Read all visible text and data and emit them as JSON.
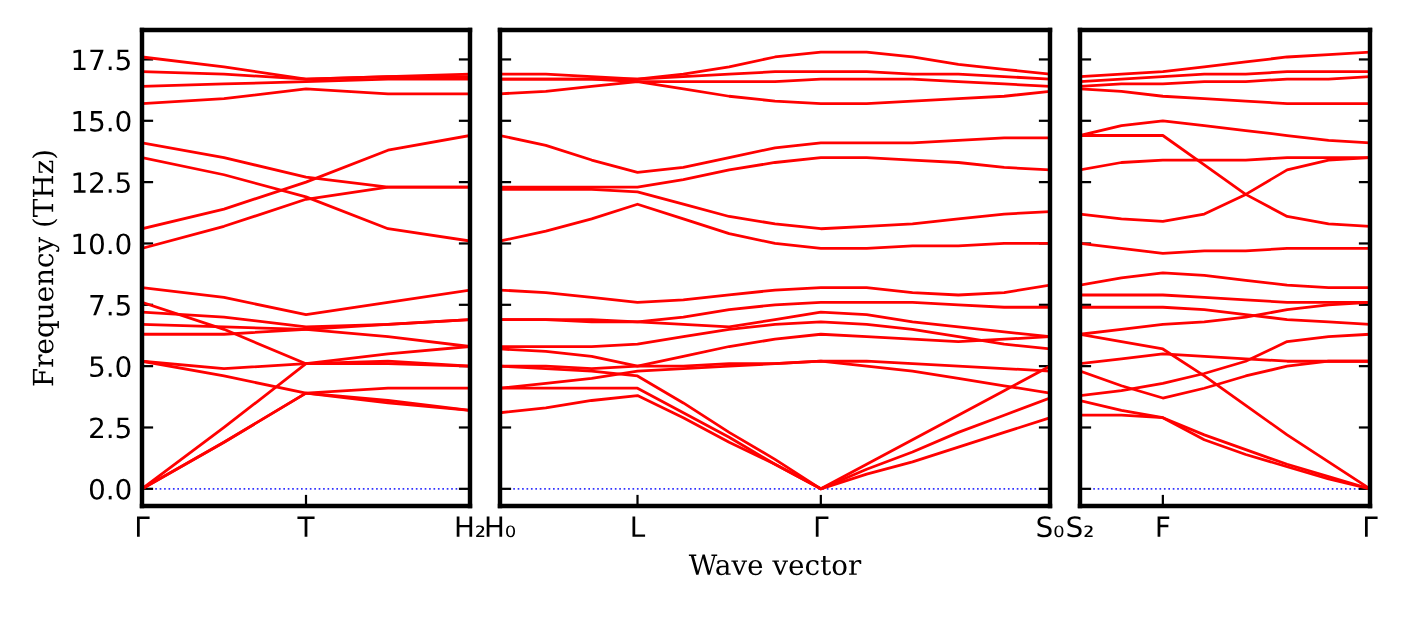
{
  "chart_data": [
    {
      "type": "line",
      "ylabel": "Frequency (THz)",
      "categories": [
        "Γ",
        null,
        "T",
        null,
        "H₂"
      ],
      "ylim": [
        -0.7,
        18.7
      ],
      "yticks": [
        {
          "value": 0,
          "label": "0.0"
        },
        2.5,
        {
          "value": 5,
          "label": "5.0"
        },
        7.5,
        {
          "value": 10,
          "label": "10.0"
        },
        12.5,
        {
          "value": 15,
          "label": "15.0"
        },
        17.5
      ],
      "line_style": "solid",
      "ref_lines": [
        {
          "axis": "y",
          "value": 0,
          "color": "#3333ff",
          "line_style": "dotted"
        }
      ],
      "series": [
        {
          "color": "#ff0000",
          "values": [
            17.6,
            17.2,
            16.7,
            16.8,
            16.8
          ]
        },
        {
          "color": "#ff0000",
          "values": [
            17.0,
            16.9,
            16.7,
            16.8,
            16.9
          ]
        },
        {
          "color": "#ff0000",
          "values": [
            16.4,
            16.5,
            16.6,
            16.7,
            16.7
          ]
        },
        {
          "color": "#ff0000",
          "values": [
            15.7,
            15.9,
            16.3,
            16.1,
            16.1
          ]
        },
        {
          "color": "#ff0000",
          "values": [
            14.1,
            13.5,
            12.7,
            12.3,
            12.3
          ]
        },
        {
          "color": "#ff0000",
          "values": [
            13.5,
            12.8,
            11.9,
            10.6,
            10.1
          ]
        },
        {
          "color": "#ff0000",
          "values": [
            10.6,
            11.4,
            12.5,
            13.8,
            14.4
          ]
        },
        {
          "color": "#ff0000",
          "values": [
            9.8,
            10.7,
            11.8,
            12.3,
            12.3
          ]
        },
        {
          "color": "#ff0000",
          "values": [
            8.2,
            7.8,
            7.1,
            7.6,
            8.1
          ]
        },
        {
          "color": "#ff0000",
          "values": [
            7.6,
            6.5,
            5.1,
            5.2,
            5.0
          ]
        },
        {
          "color": "#ff0000",
          "values": [
            7.2,
            7.0,
            6.6,
            6.7,
            6.9
          ]
        },
        {
          "color": "#ff0000",
          "values": [
            6.7,
            6.6,
            6.5,
            6.2,
            5.8
          ]
        },
        {
          "color": "#ff0000",
          "values": [
            6.3,
            6.3,
            6.5,
            6.7,
            6.9
          ]
        },
        {
          "color": "#ff0000",
          "values": [
            5.2,
            4.9,
            5.1,
            5.1,
            5.0
          ]
        },
        {
          "color": "#ff0000",
          "values": [
            5.2,
            4.6,
            3.9,
            3.6,
            3.2
          ]
        },
        {
          "color": "#ff0000",
          "values": [
            0,
            2.5,
            5.1,
            5.5,
            5.8
          ]
        },
        {
          "color": "#ff0000",
          "values": [
            0,
            1.9,
            3.9,
            4.1,
            4.1
          ]
        },
        {
          "color": "#ff0000",
          "values": [
            0,
            1.9,
            3.9,
            3.5,
            3.2
          ]
        }
      ]
    },
    {
      "type": "line",
      "xlabel": "Wave vector",
      "tick_labels": "x",
      "categories": [
        "H₀",
        null,
        null,
        "L",
        null,
        null,
        null,
        "Γ",
        null,
        null,
        null,
        null,
        "S₀"
      ],
      "ylim": [
        -0.7,
        18.7
      ],
      "line_style": "solid",
      "ref_lines": [
        {
          "axis": "y",
          "value": 0,
          "color": "#3333ff",
          "line_style": "dotted"
        }
      ],
      "series": [
        {
          "color": "#ff0000",
          "values": [
            16.9,
            16.9,
            16.8,
            16.7,
            16.9,
            17.2,
            17.6,
            17.8,
            17.8,
            17.6,
            17.3,
            17.1,
            16.9
          ]
        },
        {
          "color": "#ff0000",
          "values": [
            16.7,
            16.7,
            16.7,
            16.7,
            16.8,
            16.9,
            17.0,
            17.0,
            17.0,
            16.9,
            16.9,
            16.8,
            16.7
          ]
        },
        {
          "color": "#ff0000",
          "values": [
            16.7,
            16.7,
            16.7,
            16.6,
            16.6,
            16.6,
            16.6,
            16.7,
            16.7,
            16.7,
            16.6,
            16.5,
            16.4
          ]
        },
        {
          "color": "#ff0000",
          "values": [
            16.1,
            16.2,
            16.4,
            16.6,
            16.3,
            16.0,
            15.8,
            15.7,
            15.7,
            15.8,
            15.9,
            16.0,
            16.2
          ]
        },
        {
          "color": "#ff0000",
          "values": [
            14.4,
            14.0,
            13.4,
            12.9,
            13.1,
            13.5,
            13.9,
            14.1,
            14.1,
            14.1,
            14.2,
            14.3,
            14.3
          ]
        },
        {
          "color": "#ff0000",
          "values": [
            12.3,
            12.3,
            12.3,
            12.3,
            12.6,
            13.0,
            13.3,
            13.5,
            13.5,
            13.4,
            13.3,
            13.1,
            13.0
          ]
        },
        {
          "color": "#ff0000",
          "values": [
            12.2,
            12.2,
            12.2,
            12.1,
            11.6,
            11.1,
            10.8,
            10.6,
            10.7,
            10.8,
            11.0,
            11.2,
            11.3
          ]
        },
        {
          "color": "#ff0000",
          "values": [
            10.1,
            10.5,
            11.0,
            11.6,
            11.0,
            10.4,
            10.0,
            9.8,
            9.8,
            9.9,
            9.9,
            10.0,
            10.0
          ]
        },
        {
          "color": "#ff0000",
          "values": [
            8.1,
            8.0,
            7.8,
            7.6,
            7.7,
            7.9,
            8.1,
            8.2,
            8.2,
            8.0,
            7.9,
            8.0,
            8.3
          ]
        },
        {
          "color": "#ff0000",
          "values": [
            6.9,
            6.9,
            6.9,
            6.8,
            7.0,
            7.3,
            7.5,
            7.6,
            7.6,
            7.6,
            7.5,
            7.4,
            7.4
          ]
        },
        {
          "color": "#ff0000",
          "values": [
            6.9,
            6.9,
            6.8,
            6.8,
            6.7,
            6.6,
            6.9,
            7.2,
            7.1,
            6.8,
            6.6,
            6.4,
            6.2
          ]
        },
        {
          "color": "#ff0000",
          "values": [
            5.8,
            5.8,
            5.8,
            5.9,
            6.2,
            6.5,
            6.7,
            6.8,
            6.7,
            6.5,
            6.2,
            5.9,
            5.7
          ]
        },
        {
          "color": "#ff0000",
          "values": [
            5.7,
            5.6,
            5.4,
            5.0,
            5.4,
            5.8,
            6.1,
            6.3,
            6.2,
            6.1,
            6.0,
            6.1,
            6.2
          ]
        },
        {
          "color": "#ff0000",
          "values": [
            5.0,
            5.0,
            4.9,
            5.0,
            5.0,
            5.1,
            5.1,
            5.2,
            5.2,
            5.1,
            5.0,
            4.9,
            4.8
          ]
        },
        {
          "color": "#ff0000",
          "values": [
            4.1,
            4.3,
            4.5,
            4.8,
            4.9,
            5.0,
            5.1,
            5.2,
            5.0,
            4.8,
            4.5,
            4.2,
            3.9
          ]
        },
        {
          "color": "#ff0000",
          "values": [
            5.0,
            4.9,
            4.8,
            4.6,
            3.5,
            2.3,
            1.2,
            0,
            1.0,
            2.0,
            3.0,
            4.0,
            5.0
          ]
        },
        {
          "color": "#ff0000",
          "values": [
            4.1,
            4.1,
            4.1,
            4.1,
            3.1,
            2.1,
            1.0,
            0,
            0.8,
            1.5,
            2.3,
            3.0,
            3.7
          ]
        },
        {
          "color": "#ff0000",
          "values": [
            3.1,
            3.3,
            3.6,
            3.8,
            2.9,
            1.9,
            1.0,
            0,
            0.6,
            1.1,
            1.7,
            2.3,
            2.9
          ]
        }
      ]
    },
    {
      "type": "line",
      "tick_labels": "x",
      "categories": [
        "S₂",
        null,
        "F",
        null,
        null,
        null,
        null,
        "Γ"
      ],
      "ylim": [
        -0.7,
        18.7
      ],
      "line_style": "solid",
      "ref_lines": [
        {
          "axis": "y",
          "value": 0,
          "color": "#3333ff",
          "line_style": "dotted"
        }
      ],
      "series": [
        {
          "color": "#ff0000",
          "values": [
            16.8,
            16.9,
            17.0,
            17.2,
            17.4,
            17.6,
            17.7,
            17.8
          ]
        },
        {
          "color": "#ff0000",
          "values": [
            16.6,
            16.7,
            16.8,
            16.9,
            16.9,
            17.0,
            17.0,
            17.0
          ]
        },
        {
          "color": "#ff0000",
          "values": [
            16.4,
            16.5,
            16.5,
            16.6,
            16.6,
            16.7,
            16.7,
            16.8
          ]
        },
        {
          "color": "#ff0000",
          "values": [
            16.3,
            16.2,
            16.0,
            15.9,
            15.8,
            15.7,
            15.7,
            15.7
          ]
        },
        {
          "color": "#ff0000",
          "values": [
            14.4,
            14.8,
            15.0,
            14.8,
            14.6,
            14.4,
            14.2,
            14.1
          ]
        },
        {
          "color": "#ff0000",
          "values": [
            14.4,
            14.4,
            14.4,
            13.2,
            12.0,
            11.1,
            10.8,
            10.7
          ]
        },
        {
          "color": "#ff0000",
          "values": [
            13.0,
            13.3,
            13.4,
            13.4,
            13.4,
            13.5,
            13.5,
            13.5
          ]
        },
        {
          "color": "#ff0000",
          "values": [
            11.2,
            11.0,
            10.9,
            11.2,
            12.0,
            13.0,
            13.4,
            13.5
          ]
        },
        {
          "color": "#ff0000",
          "values": [
            10.0,
            9.8,
            9.6,
            9.7,
            9.7,
            9.8,
            9.8,
            9.8
          ]
        },
        {
          "color": "#ff0000",
          "values": [
            8.3,
            8.6,
            8.8,
            8.7,
            8.5,
            8.3,
            8.2,
            8.2
          ]
        },
        {
          "color": "#ff0000",
          "values": [
            7.9,
            7.9,
            7.9,
            7.8,
            7.7,
            7.6,
            7.6,
            7.6
          ]
        },
        {
          "color": "#ff0000",
          "values": [
            7.4,
            7.4,
            7.4,
            7.3,
            7.1,
            6.9,
            6.8,
            6.7
          ]
        },
        {
          "color": "#ff0000",
          "values": [
            6.3,
            6.5,
            6.7,
            6.8,
            7.0,
            7.3,
            7.5,
            7.6
          ]
        },
        {
          "color": "#ff0000",
          "values": [
            3.8,
            4.0,
            4.3,
            4.7,
            5.2,
            6.0,
            6.2,
            6.3
          ]
        },
        {
          "color": "#ff0000",
          "values": [
            5.1,
            5.3,
            5.5,
            5.4,
            5.3,
            5.2,
            5.2,
            5.2
          ]
        },
        {
          "color": "#ff0000",
          "values": [
            4.8,
            4.2,
            3.7,
            4.1,
            4.6,
            5.0,
            5.2,
            5.2
          ]
        },
        {
          "color": "#ff0000",
          "values": [
            6.3,
            6.0,
            5.7,
            4.6,
            3.4,
            2.2,
            1.1,
            0
          ]
        },
        {
          "color": "#ff0000",
          "values": [
            3.6,
            3.2,
            2.9,
            2.2,
            1.6,
            1.0,
            0.5,
            0
          ]
        },
        {
          "color": "#ff0000",
          "values": [
            3.0,
            3.0,
            2.9,
            2.0,
            1.4,
            0.9,
            0.4,
            0
          ]
        }
      ]
    }
  ]
}
